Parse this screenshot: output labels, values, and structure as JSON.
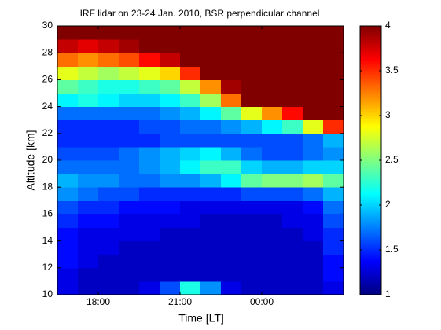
{
  "chart_data": {
    "type": "heatmap",
    "title": "IRF lidar on 23-24 Jan. 2010, BSR perpendicular channel",
    "xlabel": "Time [LT]",
    "ylabel": "Altitude [km]",
    "colormap": "jet",
    "xlim": [
      16.5,
      27
    ],
    "ylim": [
      10,
      30
    ],
    "clim": [
      1,
      4
    ],
    "xticks": [
      {
        "value": 18,
        "label": "18:00"
      },
      {
        "value": 21,
        "label": "21:00"
      },
      {
        "value": 24,
        "label": "00:00"
      }
    ],
    "yticks": [
      10,
      12,
      14,
      16,
      18,
      20,
      22,
      24,
      26,
      28,
      30
    ],
    "cticks": [
      1,
      1.5,
      2,
      2.5,
      3,
      3.5,
      4
    ],
    "x": [
      16.875,
      17.625,
      18.375,
      19.125,
      19.875,
      20.625,
      21.375,
      22.125,
      22.875,
      23.625,
      24.375,
      25.125,
      25.875,
      26.625
    ],
    "y": [
      10.5,
      11.5,
      12.5,
      13.5,
      14.5,
      15.5,
      16.5,
      17.5,
      18.5,
      19.5,
      20.5,
      21.5,
      22.5,
      23.5,
      24.5,
      25.5,
      26.5,
      27.5,
      28.5,
      29.5
    ],
    "z": [
      [
        1.3,
        1.2,
        1.2,
        1.2,
        1.3,
        1.6,
        2.2,
        1.8,
        1.3,
        1.2,
        1.2,
        1.2,
        1.2,
        1.3
      ],
      [
        1.3,
        1.2,
        1.2,
        1.2,
        1.2,
        1.2,
        1.2,
        1.2,
        1.2,
        1.2,
        1.2,
        1.2,
        1.2,
        1.4
      ],
      [
        1.4,
        1.3,
        1.2,
        1.2,
        1.2,
        1.2,
        1.2,
        1.2,
        1.2,
        1.2,
        1.2,
        1.2,
        1.2,
        1.4
      ],
      [
        1.4,
        1.3,
        1.3,
        1.2,
        1.2,
        1.2,
        1.2,
        1.2,
        1.2,
        1.2,
        1.2,
        1.2,
        1.2,
        1.5
      ],
      [
        1.4,
        1.3,
        1.3,
        1.3,
        1.3,
        1.2,
        1.2,
        1.2,
        1.2,
        1.2,
        1.2,
        1.2,
        1.3,
        1.5
      ],
      [
        1.5,
        1.4,
        1.4,
        1.3,
        1.3,
        1.3,
        1.3,
        1.2,
        1.2,
        1.2,
        1.2,
        1.3,
        1.3,
        1.6
      ],
      [
        1.6,
        1.5,
        1.5,
        1.4,
        1.4,
        1.4,
        1.3,
        1.3,
        1.3,
        1.3,
        1.3,
        1.3,
        1.4,
        1.7
      ],
      [
        1.8,
        1.7,
        1.6,
        1.6,
        1.5,
        1.5,
        1.5,
        1.5,
        1.5,
        1.6,
        1.6,
        1.6,
        1.7,
        1.9
      ],
      [
        1.9,
        1.8,
        1.8,
        1.7,
        1.7,
        1.8,
        1.8,
        1.9,
        2.1,
        2.4,
        2.5,
        2.5,
        2.6,
        2.4
      ],
      [
        1.7,
        1.7,
        1.7,
        1.7,
        1.8,
        1.9,
        2.1,
        2.3,
        2.3,
        2.0,
        1.9,
        1.9,
        2.0,
        2.0
      ],
      [
        1.6,
        1.6,
        1.6,
        1.7,
        1.8,
        1.9,
        2.0,
        2.1,
        1.9,
        1.7,
        1.6,
        1.6,
        1.7,
        1.8
      ],
      [
        1.5,
        1.5,
        1.5,
        1.5,
        1.5,
        1.6,
        1.6,
        1.6,
        1.6,
        1.6,
        1.6,
        1.6,
        1.7,
        1.9
      ],
      [
        1.5,
        1.5,
        1.5,
        1.5,
        1.6,
        1.6,
        1.7,
        1.7,
        1.8,
        1.9,
        2.1,
        2.3,
        2.8,
        3.5
      ],
      [
        1.7,
        1.7,
        1.7,
        1.7,
        1.7,
        1.8,
        1.9,
        2.1,
        2.4,
        2.8,
        3.2,
        3.6,
        4,
        4
      ],
      [
        2.1,
        2.2,
        2.1,
        2.0,
        2.0,
        2.1,
        2.3,
        2.6,
        3.3,
        4,
        4,
        4,
        4,
        4
      ],
      [
        2.4,
        2.3,
        2.2,
        2.2,
        2.3,
        2.4,
        2.7,
        3.2,
        3.9,
        4,
        4,
        4,
        4,
        4
      ],
      [
        2.8,
        2.7,
        2.6,
        2.7,
        2.8,
        3.0,
        3.5,
        4,
        4,
        4,
        4,
        4,
        4,
        4
      ],
      [
        3.3,
        3.2,
        3.3,
        3.4,
        3.6,
        3.8,
        4,
        4,
        4,
        4,
        4,
        4,
        4,
        4
      ],
      [
        3.8,
        3.7,
        3.8,
        3.9,
        4,
        4,
        4,
        4,
        4,
        4,
        4,
        4,
        4,
        4
      ],
      [
        4,
        4,
        4,
        4,
        4,
        4,
        4,
        4,
        4,
        4,
        4,
        4,
        4,
        4
      ]
    ]
  }
}
